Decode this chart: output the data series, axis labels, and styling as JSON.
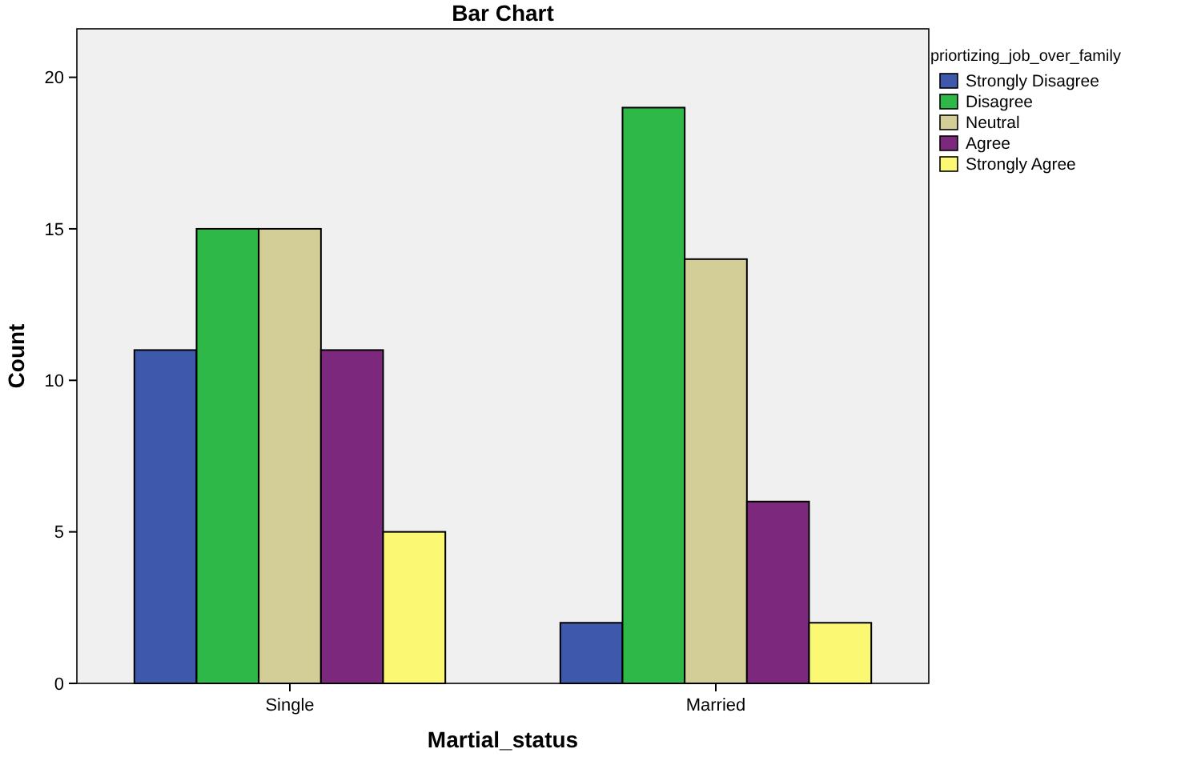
{
  "chart_data": {
    "type": "bar",
    "title": "Bar Chart",
    "xlabel": "Martial_status",
    "ylabel": "Count",
    "legend_title": "priortizing_job_over_family",
    "categories": [
      "Single",
      "Married"
    ],
    "series": [
      {
        "name": "Strongly Disagree",
        "color": "#3e58ac",
        "values": [
          11,
          2
        ]
      },
      {
        "name": "Disagree",
        "color": "#2eb848",
        "values": [
          15,
          19
        ]
      },
      {
        "name": "Neutral",
        "color": "#d3ce97",
        "values": [
          15,
          14
        ]
      },
      {
        "name": "Agree",
        "color": "#7c287d",
        "values": [
          11,
          6
        ]
      },
      {
        "name": "Strongly Agree",
        "color": "#fbf873",
        "values": [
          5,
          2
        ]
      }
    ],
    "ylim": [
      0,
      21.6
    ],
    "yticks": [
      0,
      5,
      10,
      15,
      20
    ],
    "grid": false,
    "legend": "top right"
  }
}
